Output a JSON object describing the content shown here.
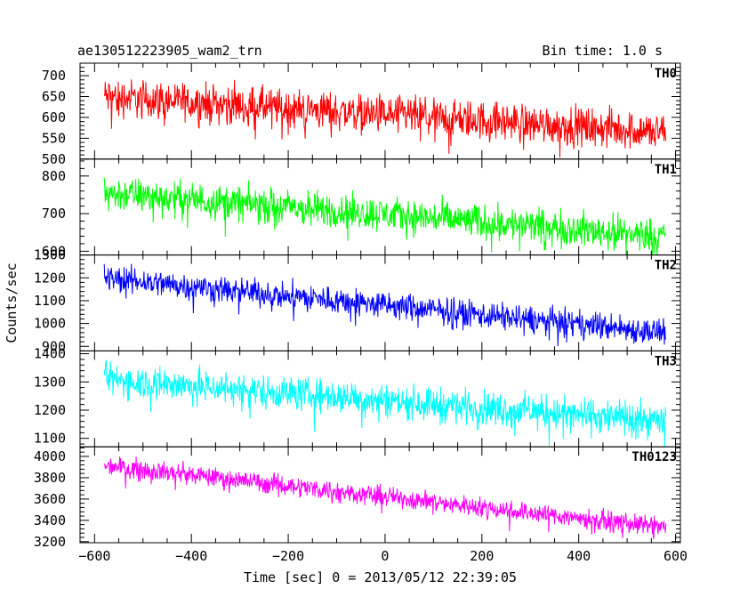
{
  "header": {
    "title": "ae130512223905_wam2_trn",
    "bin_time": "Bin time: 1.0 s"
  },
  "chart_data": {
    "type": "line",
    "title": "ae130512223905_wam2_trn",
    "xlabel": "Time [sec] 0 = 2013/05/12 22:39:05",
    "ylabel": "Counts/sec",
    "xlim": [
      -630,
      610
    ],
    "x_range_data": [
      -580,
      580
    ],
    "bin_time_s": 1.0,
    "xticks": [
      -600,
      -400,
      -200,
      0,
      200,
      400,
      600
    ],
    "xtick_labels": [
      "−600",
      "−400",
      "−200",
      "0",
      "200",
      "400",
      "600"
    ],
    "grid": false,
    "panels": [
      {
        "name": "TH0",
        "color": "#ff0000",
        "ylim": [
          500,
          730
        ],
        "yticks": [
          500,
          550,
          600,
          650,
          700
        ],
        "trend_start": 650,
        "trend_end": 565,
        "noise": 35
      },
      {
        "name": "TH1",
        "color": "#00ff00",
        "ylim": [
          590,
          845
        ],
        "yticks": [
          600,
          700,
          800
        ],
        "trend_start": 755,
        "trend_end": 640,
        "noise": 35
      },
      {
        "name": "TH2",
        "color": "#0000ff",
        "ylim": [
          880,
          1300
        ],
        "yticks": [
          900,
          1000,
          1100,
          1200,
          1300
        ],
        "trend_start": 1200,
        "trend_end": 960,
        "noise": 45
      },
      {
        "name": "TH3",
        "color": "#00ffff",
        "ylim": [
          1070,
          1410
        ],
        "yticks": [
          1100,
          1200,
          1300,
          1400
        ],
        "trend_start": 1310,
        "trend_end": 1160,
        "noise": 45
      },
      {
        "name": "TH0123",
        "color": "#ff00ff",
        "ylim": [
          3190,
          4090
        ],
        "yticks": [
          3200,
          3400,
          3600,
          3800,
          4000
        ],
        "trend_start": 3920,
        "trend_end": 3330,
        "noise": 70
      }
    ]
  }
}
